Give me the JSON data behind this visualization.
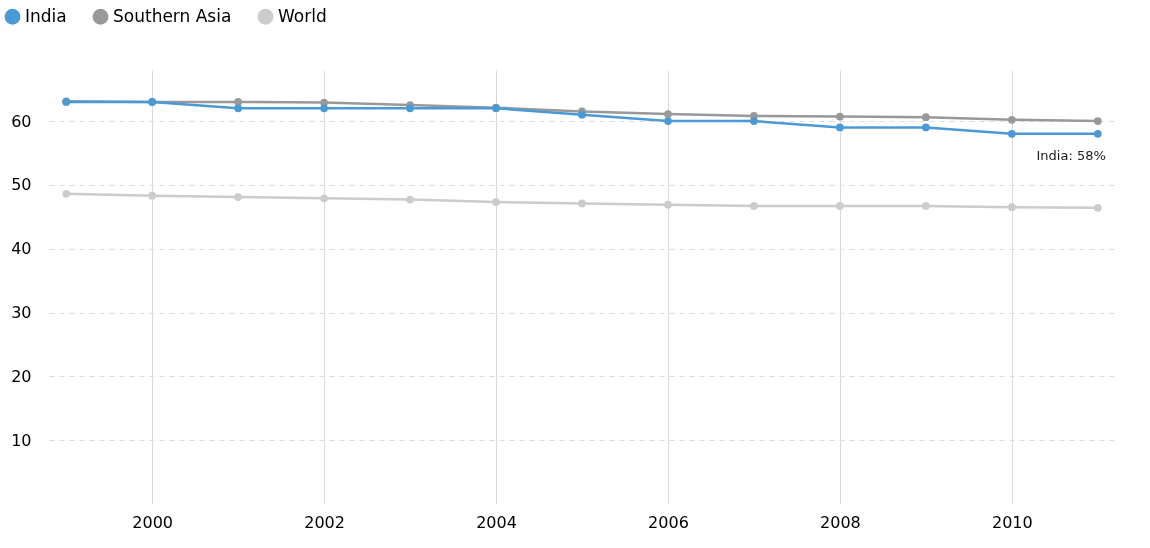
{
  "chart_data": {
    "type": "line",
    "x": [
      1999,
      2000,
      2001,
      2002,
      2003,
      2004,
      2005,
      2006,
      2007,
      2008,
      2009,
      2010,
      2011
    ],
    "series": [
      {
        "name": "India",
        "color": "#4a9ad6",
        "values": [
          63,
          63,
          62,
          62,
          62,
          62,
          61,
          60,
          60,
          59,
          59,
          58,
          58
        ]
      },
      {
        "name": "Southern Asia",
        "color": "#999999",
        "values": [
          63.1,
          63,
          63,
          62.9,
          62.5,
          62.1,
          61.5,
          61.1,
          60.8,
          60.7,
          60.6,
          60.2,
          60
        ]
      },
      {
        "name": "World",
        "color": "#cccccc",
        "values": [
          48.6,
          48.3,
          48.1,
          47.9,
          47.7,
          47.3,
          47.1,
          46.9,
          46.7,
          46.7,
          46.7,
          46.5,
          46.4
        ]
      }
    ],
    "xlim": [
      1998.8,
      2011.2
    ],
    "xticks": [
      2000,
      2002,
      2004,
      2006,
      2008,
      2010
    ],
    "ylim": [
      0,
      68
    ],
    "yticks": [
      10,
      20,
      30,
      40,
      50,
      60
    ],
    "annotations": [
      {
        "text": "India: 58%",
        "x": 2011,
        "y": 58
      }
    ],
    "grid": true,
    "legend": "top left",
    "marker": "circle",
    "line_style": "solid"
  }
}
